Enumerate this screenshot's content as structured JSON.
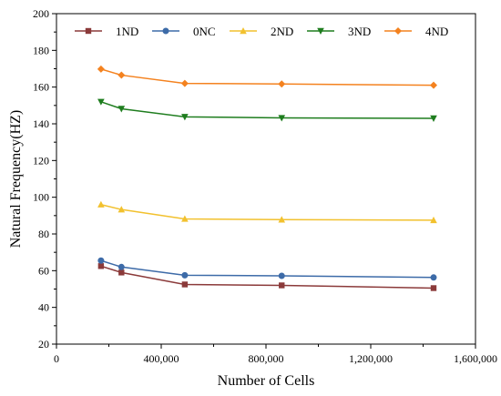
{
  "chart_data": {
    "type": "line",
    "title": "",
    "xlabel": "Number of Cells",
    "ylabel": "Natural Frequency(HZ)",
    "xlim": [
      0,
      1600000
    ],
    "ylim": [
      20,
      200
    ],
    "x_ticks": [
      0,
      400000,
      800000,
      1200000,
      1600000
    ],
    "x_tick_labels": [
      "0",
      "400,000",
      "800,000",
      "1,200,000",
      "1,600,000"
    ],
    "y_ticks": [
      20,
      40,
      60,
      80,
      100,
      120,
      140,
      160,
      180,
      200
    ],
    "y_tick_labels": [
      "20",
      "40",
      "60",
      "80",
      "100",
      "120",
      "140",
      "160",
      "180",
      "200"
    ],
    "grid": false,
    "legend_position": "top",
    "x": [
      170000,
      248000,
      490000,
      860000,
      1440000
    ],
    "series": [
      {
        "name": "1ND",
        "color": "#8B3A3A",
        "marker": "square",
        "values": [
          62.5,
          59.0,
          52.5,
          52.0,
          50.5
        ]
      },
      {
        "name": "0NC",
        "color": "#3D6BA8",
        "marker": "circle",
        "values": [
          65.5,
          62.0,
          57.5,
          57.2,
          56.3
        ]
      },
      {
        "name": "2ND",
        "color": "#F2C12E",
        "marker": "triangle-up",
        "values": [
          96.0,
          93.3,
          88.2,
          87.8,
          87.5
        ]
      },
      {
        "name": "3ND",
        "color": "#1E7D1E",
        "marker": "triangle-down",
        "values": [
          152.0,
          148.2,
          143.8,
          143.2,
          143.0
        ]
      },
      {
        "name": "4ND",
        "color": "#F4821F",
        "marker": "diamond",
        "values": [
          169.8,
          166.5,
          162.0,
          161.7,
          161.0
        ]
      }
    ]
  }
}
